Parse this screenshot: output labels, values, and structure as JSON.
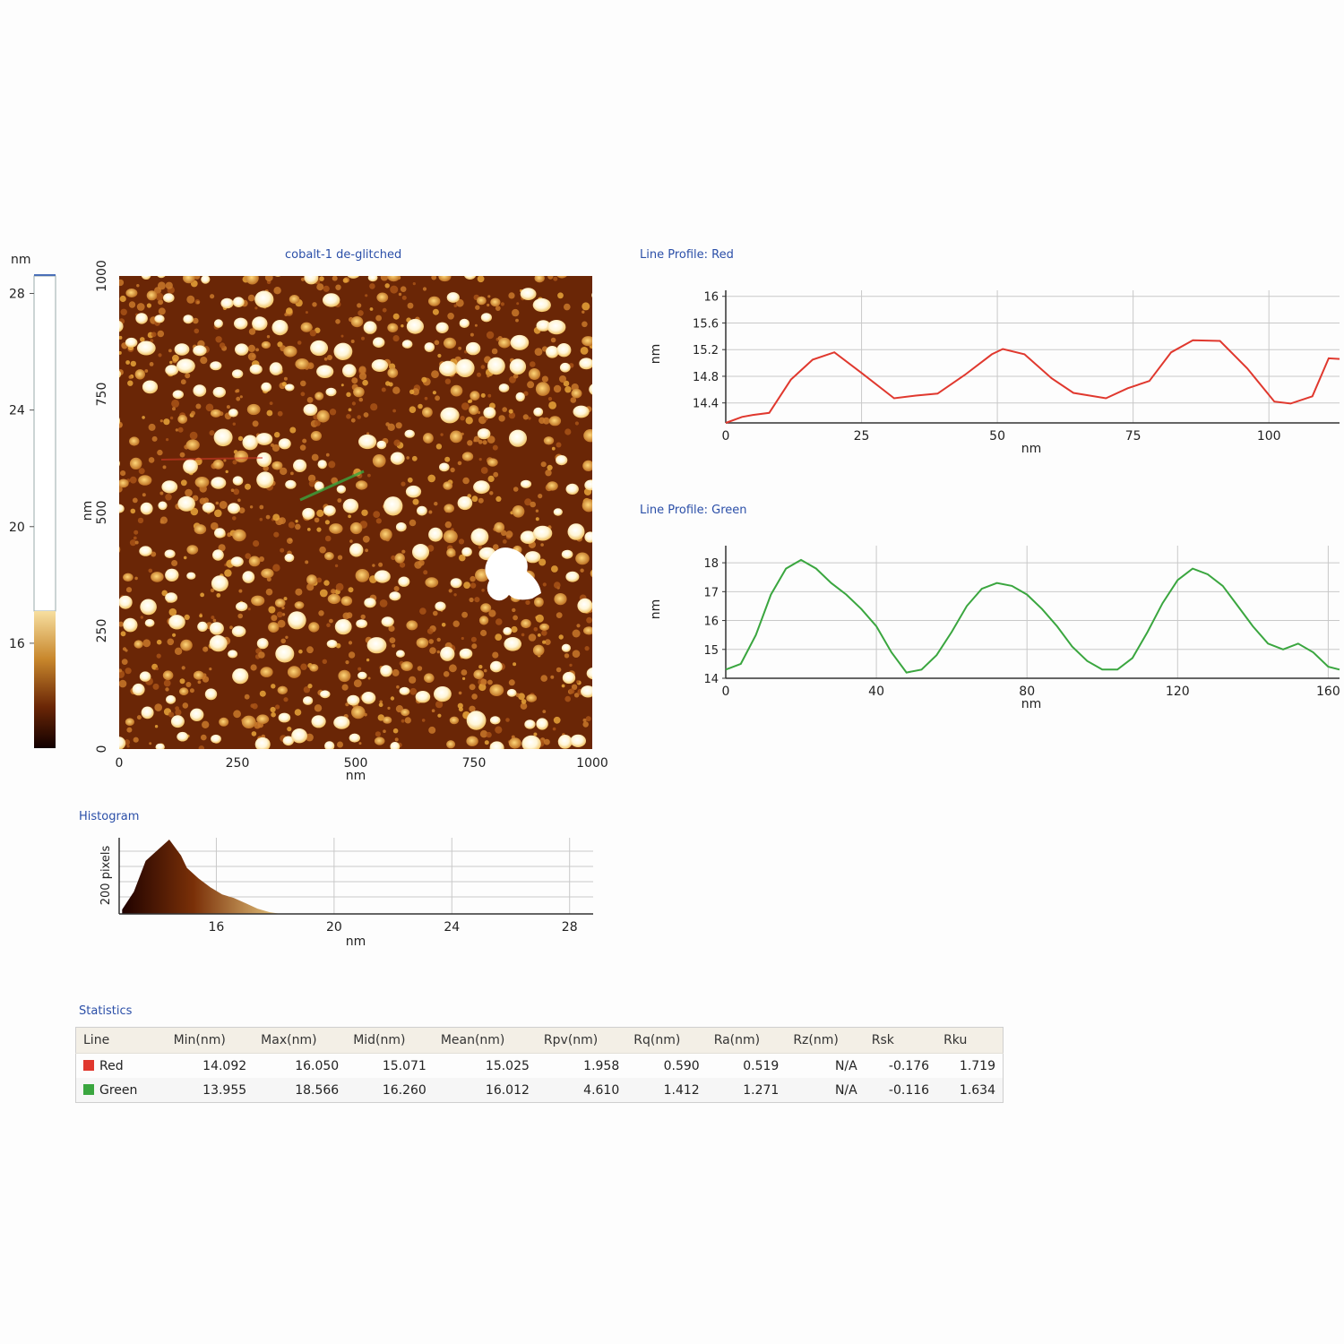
{
  "colorbar": {
    "unit": "nm",
    "ticks": [
      {
        "v": 28,
        "label": "28"
      },
      {
        "v": 24,
        "label": "24"
      },
      {
        "v": 20,
        "label": "20"
      },
      {
        "v": 16,
        "label": "16"
      }
    ],
    "range": [
      12.4,
      28.6
    ],
    "cutoff": 17.0
  },
  "image": {
    "title": "cobalt-1 de-glitched",
    "xlabel": "nm",
    "ylabel": "nm",
    "xticks": [
      "0",
      "250",
      "500",
      "750",
      "1000"
    ],
    "yticks": [
      "0",
      "250",
      "500",
      "750",
      "1000"
    ],
    "colors": {
      "dark": "#2a0500",
      "mid": "#8a3a06",
      "light": "#e8a43a",
      "bright": "#ffe2a0"
    }
  },
  "histogram": {
    "title": "Histogram",
    "ylabel": "200 pixels",
    "xlabel": "nm",
    "xticks": [
      "16",
      "20",
      "24",
      "28"
    ]
  },
  "profile_red": {
    "title": "Line Profile: Red",
    "xlabel": "nm",
    "ylabel": "nm",
    "color": "#e0382e",
    "xticks": [
      "0",
      "25",
      "50",
      "75",
      "100"
    ],
    "yticks": [
      "16",
      "15.6",
      "15.2",
      "14.8",
      "14.4"
    ]
  },
  "profile_green": {
    "title": "Line Profile: Green",
    "xlabel": "nm",
    "ylabel": "nm",
    "color": "#3aa63f",
    "xticks": [
      "0",
      "40",
      "80",
      "120",
      "160"
    ],
    "yticks": [
      "18",
      "17",
      "16",
      "15",
      "14"
    ]
  },
  "chart_data": [
    {
      "type": "line",
      "title": "Line Profile: Red",
      "xlabel": "nm",
      "ylabel": "nm",
      "xlim": [
        0,
        113
      ],
      "ylim": [
        14.1,
        16.05
      ],
      "series": [
        {
          "name": "Red",
          "x": [
            0,
            3,
            5,
            8,
            12,
            16,
            20,
            25,
            31,
            35,
            39,
            44,
            49,
            51,
            55,
            60,
            64,
            70,
            74,
            78,
            82,
            86,
            91,
            96,
            101,
            104,
            108,
            111,
            113
          ],
          "y": [
            14.1,
            14.19,
            14.22,
            14.25,
            14.75,
            15.05,
            15.16,
            14.85,
            14.47,
            14.51,
            14.54,
            14.82,
            15.13,
            15.21,
            15.13,
            14.77,
            14.55,
            14.47,
            14.62,
            14.73,
            15.16,
            15.34,
            15.33,
            14.92,
            14.42,
            14.39,
            14.5,
            15.07,
            15.06
          ]
        }
      ]
    },
    {
      "type": "line",
      "title": "Line Profile: Green",
      "xlabel": "nm",
      "ylabel": "nm",
      "xlim": [
        0,
        163
      ],
      "ylim": [
        14.0,
        18.5
      ],
      "series": [
        {
          "name": "Green",
          "x": [
            0,
            4,
            8,
            12,
            16,
            20,
            24,
            28,
            32,
            36,
            40,
            44,
            48,
            52,
            56,
            60,
            64,
            68,
            72,
            76,
            80,
            84,
            88,
            92,
            96,
            100,
            104,
            108,
            112,
            116,
            120,
            124,
            128,
            132,
            136,
            140,
            144,
            148,
            152,
            156,
            160,
            163
          ],
          "y": [
            14.3,
            14.5,
            15.5,
            16.9,
            17.8,
            18.1,
            17.8,
            17.3,
            16.9,
            16.4,
            15.8,
            14.9,
            14.2,
            14.3,
            14.8,
            15.6,
            16.5,
            17.1,
            17.3,
            17.2,
            16.9,
            16.4,
            15.8,
            15.1,
            14.6,
            14.3,
            14.3,
            14.7,
            15.6,
            16.6,
            17.4,
            17.8,
            17.6,
            17.2,
            16.5,
            15.8,
            15.2,
            15.0,
            15.2,
            14.9,
            14.4,
            14.3
          ]
        }
      ]
    },
    {
      "type": "area",
      "title": "Histogram",
      "xlabel": "nm",
      "ylabel": "200 pixels",
      "xlim": [
        12.7,
        28.8
      ],
      "x": [
        12.8,
        13.2,
        13.6,
        14.0,
        14.4,
        14.8,
        15.0,
        15.4,
        15.8,
        16.2,
        16.6,
        17.0,
        17.4,
        17.8,
        18.2
      ],
      "values": [
        5,
        25,
        60,
        72,
        84,
        66,
        52,
        40,
        30,
        22,
        18,
        12,
        6,
        2,
        0
      ],
      "xticks": [
        16,
        20,
        24,
        28
      ]
    }
  ],
  "statistics": {
    "title": "Statistics",
    "headers": [
      "Line",
      "Min(nm)",
      "Max(nm)",
      "Mid(nm)",
      "Mean(nm)",
      "Rpv(nm)",
      "Rq(nm)",
      "Ra(nm)",
      "Rz(nm)",
      "Rsk",
      "Rku"
    ],
    "rows": [
      {
        "name": "Red",
        "color": "#e0382e",
        "cells": [
          "14.092",
          "16.050",
          "15.071",
          "15.025",
          "1.958",
          "0.590",
          "0.519",
          "N/A",
          "-0.176",
          "1.719"
        ]
      },
      {
        "name": "Green",
        "color": "#3aa63f",
        "cells": [
          "13.955",
          "18.566",
          "16.260",
          "16.012",
          "4.610",
          "1.412",
          "1.271",
          "N/A",
          "-0.116",
          "1.634"
        ]
      }
    ]
  }
}
